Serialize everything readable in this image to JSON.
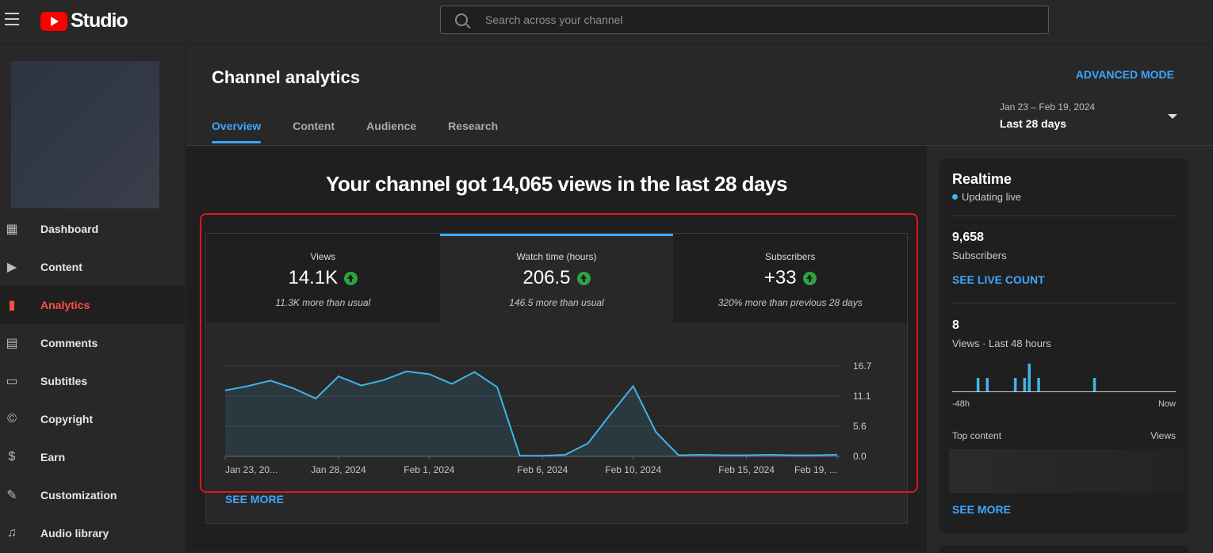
{
  "topbar": {
    "brand": "Studio",
    "search_placeholder": "Search across your channel"
  },
  "sidebar": {
    "items": [
      {
        "label": "Dashboard",
        "icon": "dashboard-icon"
      },
      {
        "label": "Content",
        "icon": "content-icon"
      },
      {
        "label": "Analytics",
        "icon": "analytics-icon",
        "active": true
      },
      {
        "label": "Comments",
        "icon": "comments-icon"
      },
      {
        "label": "Subtitles",
        "icon": "subtitles-icon"
      },
      {
        "label": "Copyright",
        "icon": "copyright-icon"
      },
      {
        "label": "Earn",
        "icon": "earn-icon"
      },
      {
        "label": "Customization",
        "icon": "customization-icon"
      },
      {
        "label": "Audio library",
        "icon": "audio-library-icon"
      }
    ]
  },
  "header": {
    "title": "Channel analytics",
    "advanced_mode": "ADVANCED MODE",
    "tabs": [
      "Overview",
      "Content",
      "Audience",
      "Research"
    ],
    "active_tab": "Overview",
    "date_range_dates": "Jan 23 – Feb 19, 2024",
    "date_range_label": "Last 28 days"
  },
  "overview": {
    "headline": "Your channel got 14,065 views in the last 28 days",
    "metrics": [
      {
        "label": "Views",
        "value": "14.1K",
        "note": "11.3K more than usual"
      },
      {
        "label": "Watch time (hours)",
        "value": "206.5",
        "note": "146.5 more than usual",
        "active": true
      },
      {
        "label": "Subscribers",
        "value": "+33",
        "note": "320% more than previous 28 days"
      }
    ],
    "see_more": "SEE MORE"
  },
  "chart_data": {
    "type": "area",
    "series": [
      {
        "values": [
          12.2,
          13.0,
          14.0,
          12.6,
          10.7,
          14.8,
          13.1,
          14.1,
          15.7,
          15.2,
          13.4,
          15.6,
          12.8,
          0.1,
          0.1,
          0.3,
          2.4,
          7.8,
          13.0,
          4.5,
          0.2,
          0.3,
          0.2,
          0.2,
          0.3,
          0.2,
          0.2,
          0.3
        ]
      }
    ],
    "x_tick_labels": [
      "Jan 23, 20...",
      "Jan 28, 2024",
      "Feb 1, 2024",
      "Feb 6, 2024",
      "Feb 10, 2024",
      "Feb 15, 2024",
      "Feb 19, ..."
    ],
    "y_tick_labels": [
      "0.0",
      "5.6",
      "11.1",
      "16.7"
    ],
    "ylim": [
      0,
      16.7
    ],
    "color": "#41b4e8"
  },
  "realtime": {
    "title": "Realtime",
    "live_label": "Updating live",
    "subscribers_value": "9,658",
    "subscribers_label": "Subscribers",
    "see_live_count": "SEE LIVE COUNT",
    "views_value": "8",
    "views_label": "Views · Last 48 hours",
    "bars": [
      0,
      0,
      0,
      0,
      0,
      1,
      0,
      1,
      0,
      0,
      0,
      0,
      0,
      1,
      0,
      1,
      2,
      0,
      1,
      0,
      0,
      0,
      0,
      0,
      0,
      0,
      0,
      0,
      0,
      0,
      1,
      0,
      0,
      0,
      0,
      0,
      0,
      0,
      0,
      0,
      0,
      0,
      0,
      0,
      0,
      0,
      0,
      0
    ],
    "axis_start": "-48h",
    "axis_end": "Now",
    "top_content_label": "Top content",
    "top_content_views_label": "Views",
    "see_more": "SEE MORE"
  }
}
